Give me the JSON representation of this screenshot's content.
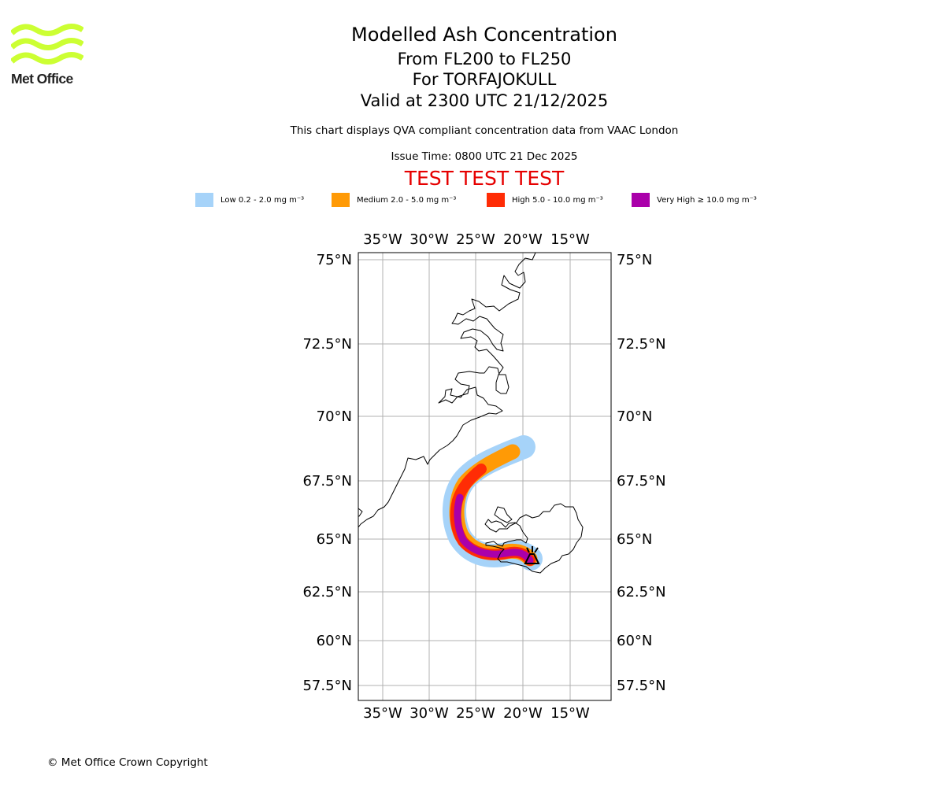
{
  "brand": {
    "name": "Met Office",
    "color": "#ccff33"
  },
  "title": {
    "main": "Modelled Ash Concentration",
    "levels": "From FL200 to FL250",
    "volcano": "For TORFAJOKULL",
    "valid": "Valid at 2300 UTC 21/12/2025"
  },
  "subtitle": {
    "compliance": "This chart displays QVA compliant concentration data from VAAC London",
    "issue": "Issue Time: 0800 UTC 21 Dec 2025"
  },
  "banner": "TEST TEST TEST",
  "legend": [
    {
      "label": "Low 0.2 - 2.0 mg m⁻³",
      "color": "#a6d3f9"
    },
    {
      "label": "Medium 2.0 - 5.0 mg m⁻³",
      "color": "#ff9a06"
    },
    {
      "label": "High 5.0 - 10.0 mg m⁻³",
      "color": "#ff2c05"
    },
    {
      "label": "Very High ≥ 10.0 mg m⁻³",
      "color": "#aa00aa"
    }
  ],
  "axes": {
    "lon_labels": [
      "35°W",
      "30°W",
      "25°W",
      "20°W",
      "15°W"
    ],
    "lat_labels": [
      "75°N",
      "72.5°N",
      "70°N",
      "67.5°N",
      "65°N",
      "62.5°N",
      "60°N",
      "57.5°N"
    ]
  },
  "volcano_marker": "TORFAJOKULL",
  "footer": "© Met Office Crown Copyright"
}
